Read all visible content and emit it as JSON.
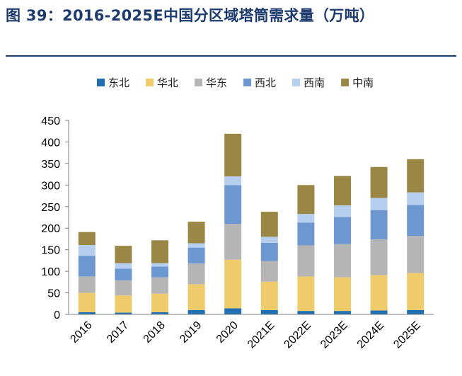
{
  "figure": {
    "title": "图 39：2016-2025E中国分区域塔筒需求量（万吨）"
  },
  "chart_data": {
    "type": "bar",
    "stacked": true,
    "title": "",
    "xlabel": "",
    "ylabel": "",
    "ylim": [
      0,
      450
    ],
    "yticks": [
      0,
      50,
      100,
      150,
      200,
      250,
      300,
      350,
      400,
      450
    ],
    "grid": false,
    "legend_position": "top",
    "categories": [
      "2016",
      "2017",
      "2018",
      "2019",
      "2020",
      "2021E",
      "2022E",
      "2023E",
      "2024E",
      "2025E"
    ],
    "series": [
      {
        "name": "东北",
        "color": "#1f6fb2",
        "values": [
          5,
          4,
          5,
          10,
          14,
          10,
          8,
          8,
          9,
          10
        ]
      },
      {
        "name": "华北",
        "color": "#f0cb6b",
        "values": [
          45,
          40,
          43,
          60,
          113,
          66,
          80,
          78,
          82,
          86
        ]
      },
      {
        "name": "华东",
        "color": "#b5b5b5",
        "values": [
          38,
          35,
          38,
          48,
          83,
          48,
          72,
          77,
          83,
          86
        ]
      },
      {
        "name": "西北",
        "color": "#6d97d1",
        "values": [
          48,
          27,
          25,
          37,
          90,
          42,
          53,
          63,
          68,
          72
        ]
      },
      {
        "name": "西南",
        "color": "#b7cfee",
        "values": [
          25,
          13,
          8,
          10,
          20,
          14,
          20,
          27,
          28,
          29
        ]
      },
      {
        "name": "中南",
        "color": "#9a8746",
        "values": [
          30,
          40,
          53,
          50,
          99,
          58,
          67,
          68,
          72,
          77
        ]
      }
    ]
  }
}
